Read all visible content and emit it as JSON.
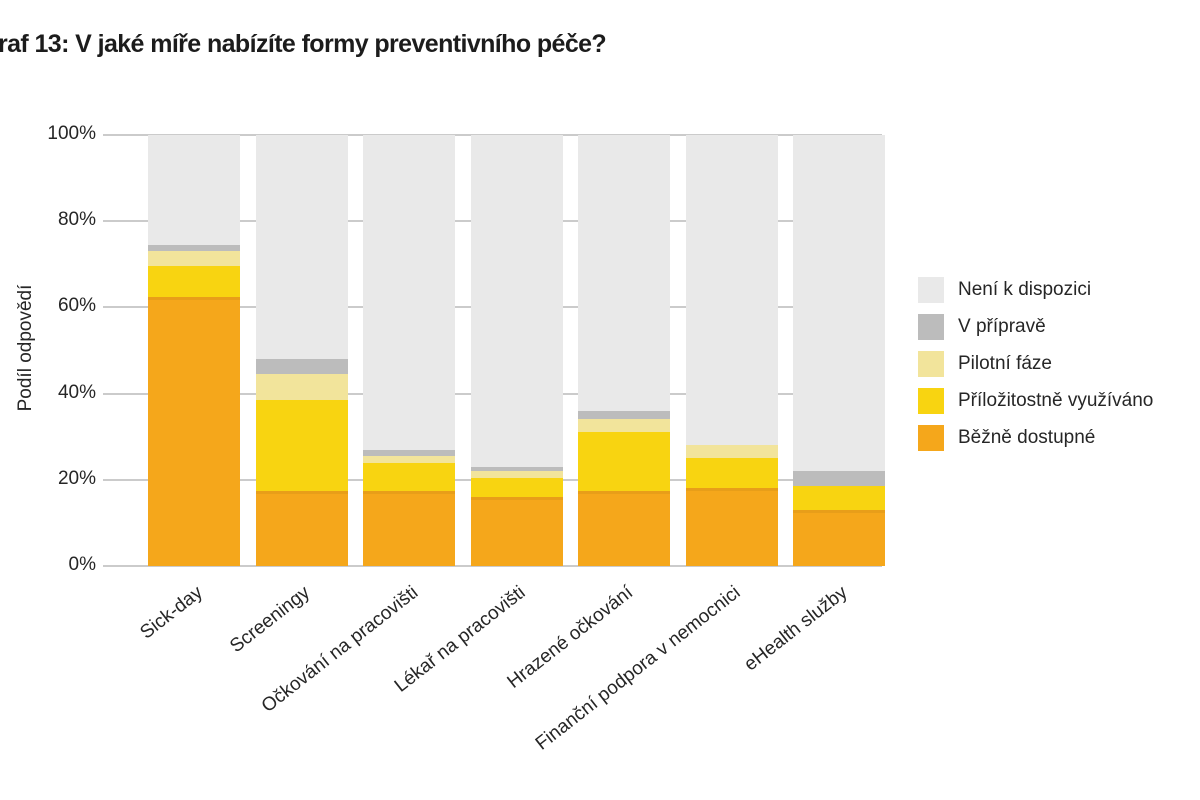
{
  "title": "raf 13: V jaké míře nabízíte formy preventivního péče?",
  "chart_data": {
    "type": "bar",
    "stacked": true,
    "orientation": "vertical",
    "title": "raf 13: V jaké míře nabízíte formy preventivního péče?",
    "xlabel": "",
    "ylabel": "Podíl odpovědí",
    "ylim": [
      0,
      100
    ],
    "yticks": [
      0,
      20,
      40,
      60,
      80,
      100
    ],
    "ytick_labels": [
      "0%",
      "20%",
      "40%",
      "60%",
      "80%",
      "100%"
    ],
    "grid": true,
    "legend_position": "right",
    "categories": [
      "Sick-day",
      "Screeningy",
      "Očkování na pracovišti",
      "Lékař na pracovišti",
      "Hrazené očkování",
      "Finanční podpora v nemocnici",
      "eHealth služby"
    ],
    "series": [
      {
        "name": "Běžně dostupné",
        "color": "#F5A71B",
        "values": [
          62.5,
          17.5,
          17.5,
          16,
          17.5,
          18,
          13
        ]
      },
      {
        "name": "Příložitostně využíváno",
        "color": "#F8D411",
        "values": [
          7,
          21,
          6.5,
          4.5,
          13.5,
          7,
          5.5
        ]
      },
      {
        "name": "Pilotní fáze",
        "color": "#F2E49B",
        "values": [
          3.5,
          6,
          1.5,
          1.5,
          3,
          3,
          0
        ]
      },
      {
        "name": "V přípravě",
        "color": "#BCBCBC",
        "values": [
          1.5,
          3.5,
          1.5,
          1,
          2,
          0,
          3.5
        ]
      },
      {
        "name": "Není k dispozici",
        "color": "#E9E9E9",
        "values": [
          25.5,
          52,
          73,
          77,
          64,
          72,
          78
        ]
      }
    ],
    "legend_order_top_to_bottom": [
      "Není k dispozici",
      "V přípravě",
      "Pilotní fáze",
      "Příložitostně využíváno",
      "Běžně dostupné"
    ]
  },
  "colors": {
    "gridline": "#cbcbcb",
    "text": "#262626",
    "background": "#ffffff"
  }
}
